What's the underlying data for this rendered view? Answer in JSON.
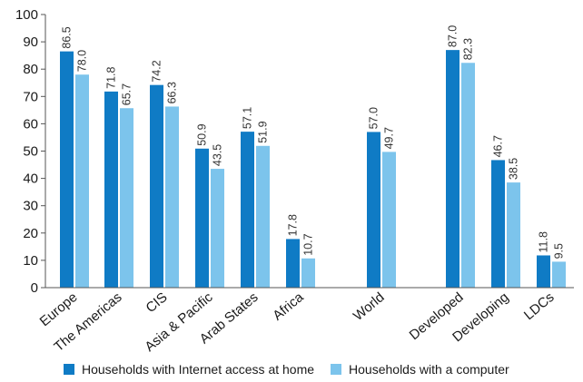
{
  "chart_data": {
    "type": "bar",
    "title": "",
    "xlabel": "",
    "ylabel": "",
    "ylim": [
      0,
      100
    ],
    "yticks": [
      0,
      10,
      20,
      30,
      40,
      50,
      60,
      70,
      80,
      90,
      100
    ],
    "grid": false,
    "legend_position": "bottom",
    "categories": [
      "Europe",
      "The Americas",
      "CIS",
      "Asia & Pacific",
      "Arab States",
      "Africa",
      "World",
      "Developed",
      "Developing",
      "LDCs"
    ],
    "series": [
      {
        "name": "Households with Internet access at home",
        "color": "#0f7bc5",
        "values": [
          86.5,
          71.8,
          74.2,
          50.9,
          57.1,
          17.8,
          57.0,
          87.0,
          46.7,
          11.8
        ]
      },
      {
        "name": "Households with a computer",
        "color": "#7cc4ec",
        "values": [
          78.0,
          65.7,
          66.3,
          43.5,
          51.9,
          10.7,
          49.7,
          82.3,
          38.5,
          9.5
        ]
      }
    ]
  }
}
